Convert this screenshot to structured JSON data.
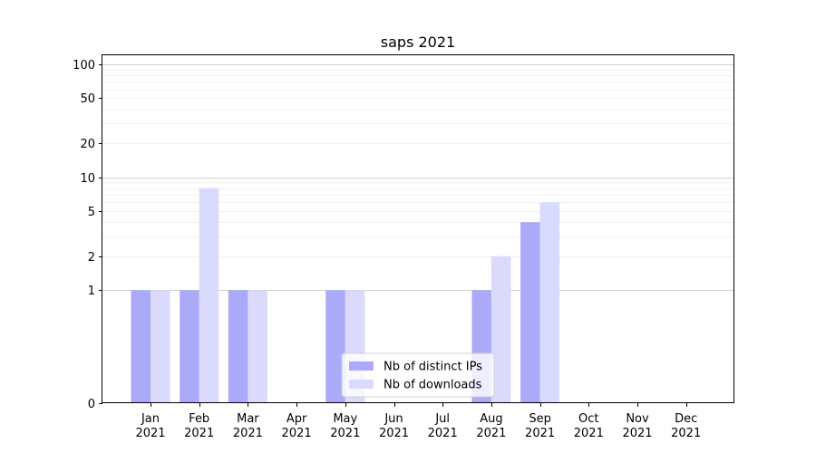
{
  "chart_data": {
    "type": "bar",
    "title": "saps 2021",
    "xlabel": "",
    "ylabel": "",
    "yscale": "symlog",
    "ylim": [
      0,
      120
    ],
    "yticks": [
      0,
      1,
      2,
      5,
      10,
      20,
      50,
      100
    ],
    "grid": "horizontal",
    "legend_position": "bottom-center",
    "categories": [
      [
        "Jan",
        "2021"
      ],
      [
        "Feb",
        "2021"
      ],
      [
        "Mar",
        "2021"
      ],
      [
        "Apr",
        "2021"
      ],
      [
        "May",
        "2021"
      ],
      [
        "Jun",
        "2021"
      ],
      [
        "Jul",
        "2021"
      ],
      [
        "Aug",
        "2021"
      ],
      [
        "Sep",
        "2021"
      ],
      [
        "Oct",
        "2021"
      ],
      [
        "Nov",
        "2021"
      ],
      [
        "Dec",
        "2021"
      ]
    ],
    "series": [
      {
        "name": "Nb of distinct IPs",
        "color": "#aaaaf8",
        "values": [
          1,
          1,
          1,
          0,
          1,
          0,
          0,
          1,
          4,
          0,
          0,
          0
        ]
      },
      {
        "name": "Nb of downloads",
        "color": "#dadafc",
        "values": [
          1,
          8,
          1,
          0,
          1,
          0,
          0,
          2,
          6,
          0,
          0,
          0
        ]
      }
    ]
  }
}
